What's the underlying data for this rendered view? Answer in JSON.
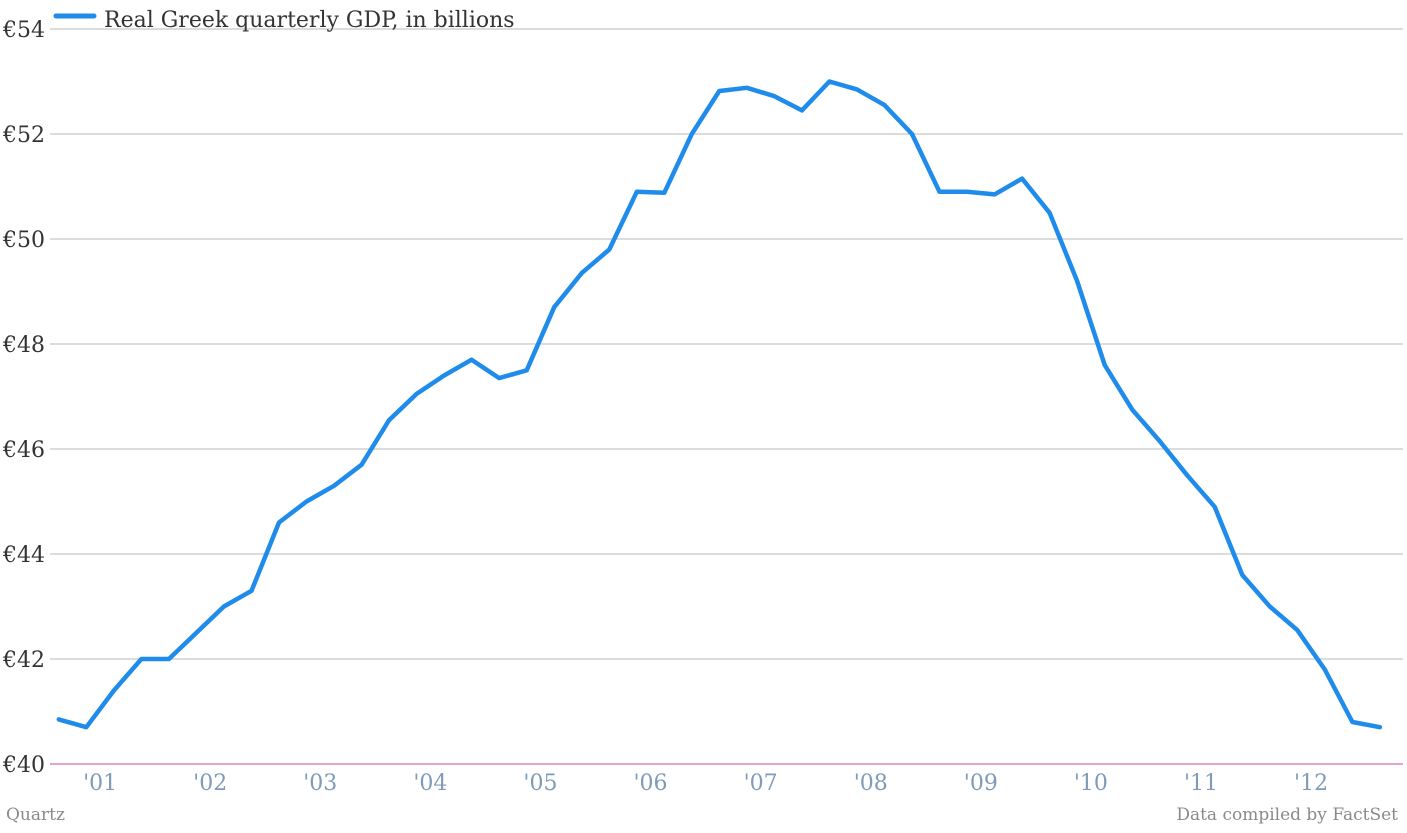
{
  "chart_data": {
    "type": "line",
    "series": [
      {
        "name": "Real Greek quarterly GDP, in billions",
        "color": "#1f8ceb",
        "values": [
          40.85,
          40.7,
          41.4,
          42.0,
          42.0,
          42.5,
          43.0,
          43.3,
          44.6,
          45.0,
          45.3,
          45.7,
          46.55,
          47.05,
          47.4,
          47.7,
          47.35,
          47.5,
          48.7,
          49.35,
          49.8,
          50.9,
          50.88,
          52.0,
          52.82,
          52.88,
          52.72,
          52.45,
          53.0,
          52.85,
          52.55,
          52.0,
          50.9,
          50.9,
          50.85,
          51.15,
          50.5,
          49.2,
          47.6,
          46.75,
          46.15,
          45.5,
          44.9,
          43.6,
          43.0,
          42.55,
          41.8,
          40.8,
          40.7
        ]
      }
    ],
    "x_start": "2000.75",
    "x_step_years": 0.25,
    "xlim": [
      2000.67,
      2012.96
    ],
    "ylim": [
      40,
      54
    ],
    "yticks": [
      40,
      42,
      44,
      46,
      48,
      50,
      52,
      54
    ],
    "ytick_labels": [
      "€40",
      "€42",
      "€44",
      "€46",
      "€48",
      "€50",
      "€52",
      "€54"
    ],
    "xticks": [
      2001,
      2002,
      2003,
      2004,
      2005,
      2006,
      2007,
      2008,
      2009,
      2010,
      2011,
      2012
    ],
    "xtick_labels": [
      "'01",
      "'02",
      "'03",
      "'04",
      "'05",
      "'06",
      "'07",
      "'08",
      "'09",
      "'10",
      "'11",
      "'12"
    ],
    "grid": true,
    "legend": "top-left",
    "title": "",
    "xlabel": "",
    "ylabel": ""
  },
  "footer": {
    "source_left": "Quartz",
    "source_right": "Data compiled by FactSet"
  },
  "colors": {
    "series": "#1f8ceb",
    "grid": "#b8b8b8",
    "baseline": "#d86bb4",
    "xtick": "#7f9bb8",
    "ytick": "#333333"
  }
}
